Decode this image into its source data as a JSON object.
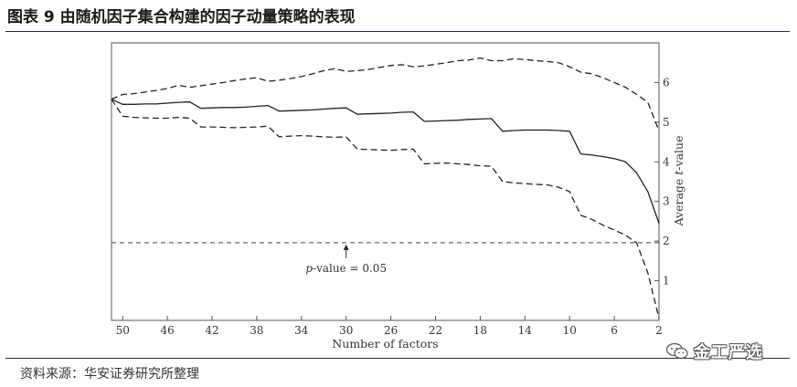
{
  "header": {
    "title": "图表 9 由随机因子集合构建的因子动量策略的表现"
  },
  "footer": {
    "source": "资料来源：华安证券研究所整理"
  },
  "watermark": {
    "label": "金工严选",
    "icon": "wechat-icon"
  },
  "chart_data": {
    "type": "line",
    "title": "",
    "xlabel": "Number of factors",
    "ylabel_prefix": "Average ",
    "ylabel_italic": "t",
    "ylabel_suffix": "-value",
    "xlim": [
      51,
      2
    ],
    "ylim": [
      0,
      7
    ],
    "xticks": [
      "50",
      "46",
      "42",
      "38",
      "34",
      "30",
      "26",
      "22",
      "18",
      "14",
      "10",
      "6",
      "2"
    ],
    "yticks": [
      "1",
      "2",
      "3",
      "4",
      "5",
      "6"
    ],
    "reference": {
      "value": 1.96,
      "label_italic": "p",
      "label_rest": "-value = 0.05"
    },
    "x": [
      51,
      50,
      49,
      48,
      47,
      46,
      45,
      44,
      43,
      42,
      41,
      40,
      39,
      38,
      37,
      36,
      35,
      34,
      33,
      32,
      31,
      30,
      29,
      28,
      27,
      26,
      25,
      24,
      23,
      22,
      21,
      20,
      19,
      18,
      17,
      16,
      15,
      14,
      13,
      12,
      11,
      10,
      9,
      8,
      7,
      6,
      5,
      4,
      3,
      2
    ],
    "series": [
      {
        "name": "Average",
        "style": "solid",
        "values": [
          5.58,
          5.45,
          5.45,
          5.46,
          5.46,
          5.48,
          5.5,
          5.51,
          5.35,
          5.36,
          5.37,
          5.37,
          5.38,
          5.4,
          5.42,
          5.28,
          5.29,
          5.3,
          5.31,
          5.33,
          5.35,
          5.36,
          5.2,
          5.21,
          5.22,
          5.23,
          5.25,
          5.26,
          5.02,
          5.03,
          5.04,
          5.05,
          5.07,
          5.08,
          5.09,
          4.77,
          4.79,
          4.8,
          4.8,
          4.8,
          4.79,
          4.77,
          4.2,
          4.17,
          4.13,
          4.08,
          4.0,
          3.72,
          3.25,
          2.45
        ]
      },
      {
        "name": "Upper bound",
        "style": "dashed",
        "values": [
          5.58,
          5.7,
          5.72,
          5.76,
          5.8,
          5.85,
          5.93,
          5.88,
          5.92,
          5.96,
          6.0,
          6.05,
          6.09,
          6.12,
          6.03,
          6.06,
          6.1,
          6.15,
          6.22,
          6.3,
          6.35,
          6.28,
          6.3,
          6.33,
          6.38,
          6.43,
          6.45,
          6.4,
          6.42,
          6.46,
          6.5,
          6.55,
          6.57,
          6.62,
          6.55,
          6.55,
          6.6,
          6.58,
          6.55,
          6.53,
          6.5,
          6.4,
          6.26,
          6.22,
          6.12,
          6.0,
          5.88,
          5.7,
          5.5,
          4.78
        ]
      },
      {
        "name": "Lower bound",
        "style": "dashed",
        "values": [
          5.58,
          5.15,
          5.12,
          5.11,
          5.1,
          5.1,
          5.12,
          5.1,
          4.88,
          4.88,
          4.87,
          4.86,
          4.87,
          4.88,
          4.9,
          4.63,
          4.65,
          4.66,
          4.65,
          4.63,
          4.62,
          4.63,
          4.32,
          4.31,
          4.3,
          4.29,
          4.31,
          4.32,
          3.95,
          3.96,
          3.97,
          3.95,
          3.93,
          3.9,
          3.89,
          3.5,
          3.47,
          3.45,
          3.43,
          3.42,
          3.36,
          3.25,
          2.65,
          2.55,
          2.4,
          2.28,
          2.15,
          1.95,
          1.2,
          0.05
        ]
      }
    ]
  }
}
